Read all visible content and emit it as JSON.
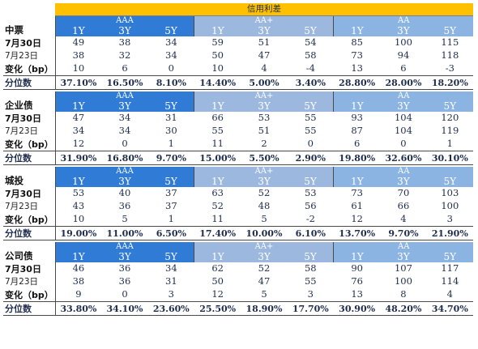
{
  "title": "信用利差",
  "sections": [
    {
      "name": "中票",
      "groups": [
        "AAA",
        "AA+",
        "AA"
      ],
      "tenors": [
        "1Y",
        "3Y",
        "5Y",
        "1Y",
        "3Y",
        "5Y",
        "1Y",
        "3Y",
        "5Y"
      ],
      "rows": [
        {
          "label": "7月30日",
          "values": [
            "49",
            "38",
            "34",
            "59",
            "51",
            "54",
            "85",
            "100",
            "115"
          ]
        },
        {
          "label": "7月23日",
          "values": [
            "38",
            "32",
            "34",
            "50",
            "47",
            "58",
            "73",
            "94",
            "118"
          ]
        },
        {
          "label": "变化（bp）",
          "values": [
            "10",
            "6",
            "0",
            "10",
            "4",
            "-4",
            "13",
            "6",
            "-3"
          ]
        },
        {
          "label": "分位数",
          "values": [
            "37.10%",
            "16.50%",
            "8.10%",
            "14.40%",
            "5.00%",
            "3.40%",
            "28.80%",
            "28.00%",
            "18.20%"
          ]
        }
      ]
    },
    {
      "name": "企业债",
      "groups": [
        "AAA",
        "AA+",
        "AA"
      ],
      "tenors": [
        "1Y",
        "3Y",
        "5Y",
        "1Y",
        "3Y",
        "5Y",
        "1Y",
        "3Y",
        "5Y"
      ],
      "rows": [
        {
          "label": "7月30日",
          "values": [
            "47",
            "34",
            "31",
            "66",
            "53",
            "55",
            "93",
            "104",
            "120"
          ]
        },
        {
          "label": "7月23日",
          "values": [
            "34",
            "34",
            "30",
            "55",
            "51",
            "55",
            "87",
            "104",
            "119"
          ]
        },
        {
          "label": "变化（bp）",
          "values": [
            "12",
            "0",
            "1",
            "11",
            "2",
            "0",
            "6",
            "0",
            "1"
          ]
        },
        {
          "label": "分位数",
          "values": [
            "31.90%",
            "16.80%",
            "9.70%",
            "15.00%",
            "5.50%",
            "2.90%",
            "19.80%",
            "32.60%",
            "30.10%"
          ]
        }
      ]
    },
    {
      "name": "城投",
      "groups": [
        "AAA",
        "AA+",
        "AA"
      ],
      "tenors": [
        "1Y",
        "3Y",
        "5Y",
        "1Y",
        "3Y",
        "5Y",
        "1Y",
        "3Y",
        "5Y"
      ],
      "rows": [
        {
          "label": "7月30日",
          "values": [
            "53",
            "40",
            "37",
            "63",
            "52",
            "53",
            "73",
            "70",
            "103"
          ]
        },
        {
          "label": "7月23日",
          "values": [
            "43",
            "36",
            "37",
            "52",
            "48",
            "56",
            "61",
            "66",
            "100"
          ]
        },
        {
          "label": "变化（bp）",
          "values": [
            "10",
            "5",
            "1",
            "11",
            "5",
            "-2",
            "12",
            "4",
            "3"
          ]
        },
        {
          "label": "分位数",
          "values": [
            "19.00%",
            "11.00%",
            "6.50%",
            "17.40%",
            "10.00%",
            "6.10%",
            "13.70%",
            "9.70%",
            "21.90%"
          ]
        }
      ]
    },
    {
      "name": "公司债",
      "groups": [
        "AAA",
        "AA+",
        "AA"
      ],
      "tenors": [
        "1Y",
        "3Y",
        "5Y",
        "1Y",
        "3Y",
        "5Y",
        "1Y",
        "3Y",
        "5Y"
      ],
      "rows": [
        {
          "label": "7月30日",
          "values": [
            "46",
            "36",
            "34",
            "62",
            "52",
            "58",
            "90",
            "107",
            "117"
          ]
        },
        {
          "label": "7月23日",
          "values": [
            "38",
            "36",
            "31",
            "50",
            "47",
            "55",
            "76",
            "100",
            "114"
          ]
        },
        {
          "label": "变化（bp）",
          "values": [
            "9",
            "0",
            "3",
            "12",
            "5",
            "3",
            "13",
            "8",
            "4"
          ]
        },
        {
          "label": "分位数",
          "values": [
            "33.80%",
            "34.10%",
            "23.60%",
            "25.50%",
            "18.90%",
            "17.70%",
            "30.90%",
            "48.20%",
            "34.70%"
          ]
        }
      ]
    }
  ]
}
